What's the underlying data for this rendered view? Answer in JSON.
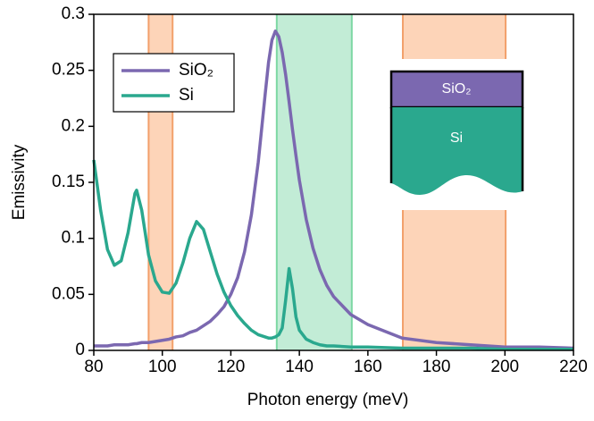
{
  "chart_data": {
    "type": "line",
    "xlabel": "Photon energy (meV)",
    "ylabel": "Emissivity",
    "x": [
      80,
      82,
      84,
      86,
      88,
      90,
      92,
      92.5,
      94,
      96,
      98,
      100,
      102,
      104,
      106,
      108,
      110,
      112,
      114,
      116,
      118,
      120,
      122,
      124,
      126,
      128,
      130,
      131,
      132,
      133,
      134,
      135,
      136,
      137,
      138,
      139,
      140,
      142,
      144,
      146,
      148,
      150,
      155,
      160,
      170,
      180,
      190,
      200,
      210,
      220
    ],
    "series": [
      {
        "name": "SiO₂",
        "color": "#7b68b0",
        "values": [
          0.004,
          0.004,
          0.004,
          0.005,
          0.005,
          0.005,
          0.006,
          0.006,
          0.007,
          0.007,
          0.008,
          0.009,
          0.01,
          0.012,
          0.013,
          0.016,
          0.018,
          0.022,
          0.026,
          0.032,
          0.039,
          0.05,
          0.065,
          0.088,
          0.121,
          0.168,
          0.228,
          0.257,
          0.277,
          0.285,
          0.28,
          0.266,
          0.246,
          0.222,
          0.197,
          0.174,
          0.152,
          0.117,
          0.091,
          0.072,
          0.058,
          0.048,
          0.032,
          0.023,
          0.011,
          0.007,
          0.005,
          0.003,
          0.003,
          0.002
        ]
      },
      {
        "name": "Si",
        "color": "#2aa88e",
        "values": [
          0.17,
          0.125,
          0.09,
          0.076,
          0.08,
          0.105,
          0.14,
          0.143,
          0.125,
          0.085,
          0.062,
          0.052,
          0.051,
          0.06,
          0.078,
          0.1,
          0.115,
          0.108,
          0.088,
          0.068,
          0.052,
          0.04,
          0.031,
          0.024,
          0.018,
          0.014,
          0.012,
          0.011,
          0.011,
          0.012,
          0.014,
          0.02,
          0.045,
          0.073,
          0.055,
          0.03,
          0.018,
          0.01,
          0.007,
          0.005,
          0.004,
          0.004,
          0.003,
          0.003,
          0.002,
          0.002,
          0.002,
          0.001,
          0.001,
          0.001
        ]
      }
    ],
    "xlim": [
      80,
      220
    ],
    "xticks": [
      80,
      100,
      120,
      140,
      160,
      180,
      200,
      220
    ],
    "ylim": [
      0,
      0.3
    ],
    "yticks": [
      0,
      0.05,
      0.1,
      0.15,
      0.2,
      0.25,
      0.3
    ],
    "legend": "upper left",
    "shaded_regions": [
      {
        "xlim": [
          96,
          103
        ],
        "color": "#fdd4b8",
        "edge": "#f2a06b"
      },
      {
        "xlim": [
          133.4,
          155.3
        ],
        "color": "#c2ecd6",
        "edge": "#7dd8a4"
      },
      {
        "xlim": [
          170.2,
          200.2
        ],
        "color": "#fdd4b8",
        "edge": "#f2a06b"
      }
    ],
    "inset": {
      "top_label": "SiO₂",
      "bottom_label": "Si"
    }
  }
}
